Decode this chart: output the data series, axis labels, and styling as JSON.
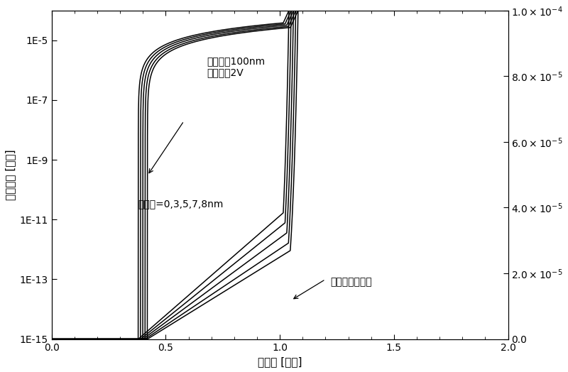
{
  "xlabel": "栅电压 [伏特]",
  "ylabel_left": "漏端电流 [安培]",
  "annotation1_text": "沟道长度100nm\n漏端电压2V",
  "annotation2_text": "芯半径=0,3,5,7,8nm",
  "annotation3_text": "硅纳米线晶体管",
  "xlim": [
    0.0,
    2.0
  ],
  "ylim_log": [
    1e-15,
    0.0001
  ],
  "ylim_lin": [
    0.0,
    0.0001
  ],
  "xticks": [
    0.0,
    0.5,
    1.0,
    1.5,
    2.0
  ],
  "yticks_log": [
    1e-15,
    1e-13,
    1e-11,
    1e-09,
    1e-07,
    1e-05
  ],
  "yticks_lin": [
    0.0,
    2e-05,
    4e-05,
    6e-05,
    8e-05,
    0.0001
  ],
  "vth_values": [
    0.38,
    0.39,
    0.4,
    0.41,
    0.42
  ],
  "subthreshold_swing": 0.06,
  "ioff": 1e-15,
  "ion_values": [
    9.8e-05,
    9e-05,
    8.2e-05,
    7.4e-05,
    6.8e-05
  ],
  "sat_voltage": [
    0.18,
    0.19,
    0.2,
    0.21,
    0.22
  ],
  "background_color": "#ffffff",
  "line_color": "#000000",
  "linewidth": 1.1
}
